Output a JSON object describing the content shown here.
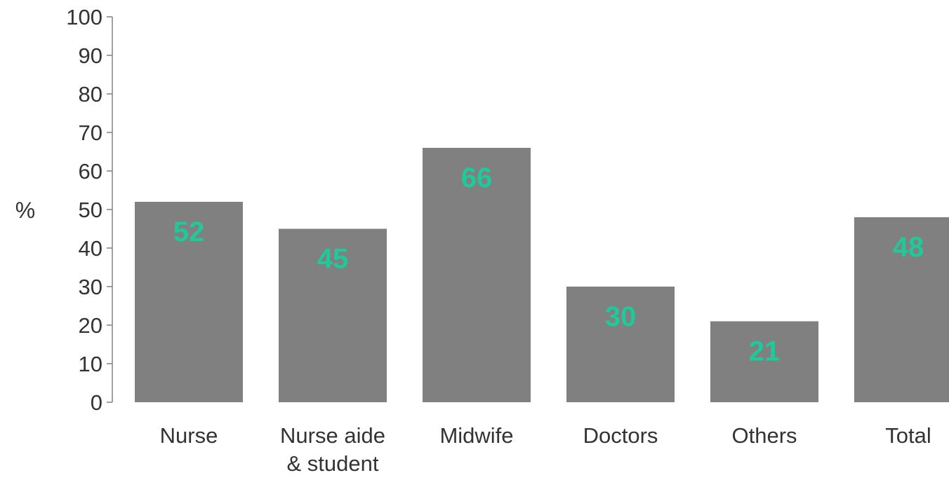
{
  "chart_data": {
    "type": "bar",
    "categories": [
      [
        "Nurse"
      ],
      [
        "Nurse aide",
        "& student"
      ],
      [
        "Midwife"
      ],
      [
        "Doctors"
      ],
      [
        "Others"
      ],
      [
        "Total"
      ]
    ],
    "values": [
      52,
      45,
      66,
      30,
      21,
      48
    ],
    "data_labels": [
      "52",
      "45",
      "66",
      "30",
      "21",
      "48"
    ],
    "ylabel": "%",
    "ylim": [
      0,
      100
    ],
    "yticks": [
      "0",
      "10",
      "20",
      "30",
      "40",
      "50",
      "60",
      "70",
      "80",
      "90",
      "100"
    ],
    "grid": false,
    "legend": "none",
    "colors": {
      "bar": "#808080",
      "data_label": "#1fc99a",
      "axis": "#808080",
      "text": "#333333"
    }
  }
}
